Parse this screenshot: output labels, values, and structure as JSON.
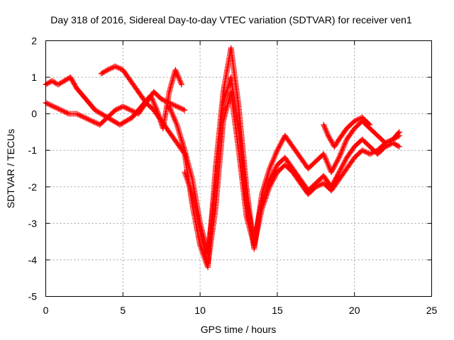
{
  "chart_data": {
    "type": "scatter",
    "title": "Day 318 of 2016, Sidereal Day-to-day VTEC variation (SDTVAR) for receiver ven1",
    "xlabel": "GPS time / hours",
    "ylabel": "SDTVAR / TECUs",
    "xlim": [
      0,
      25
    ],
    "ylim": [
      -5,
      2
    ],
    "xticks": [
      "0",
      "5",
      "10",
      "15",
      "20",
      "25"
    ],
    "yticks": [
      "2",
      "1",
      "0",
      "-1",
      "-2",
      "-3",
      "-4",
      "-5"
    ],
    "grid": true,
    "marker": "plus",
    "color": "#ff0000",
    "series": [
      {
        "x": [
          0.0,
          0.4,
          0.8,
          1.2,
          1.6,
          2.0,
          2.4,
          2.8,
          3.2,
          3.6,
          4.0,
          4.4,
          4.8,
          5.2,
          5.6,
          6.0,
          6.4,
          6.8,
          7.2,
          7.6,
          8.0,
          8.4,
          8.8
        ],
        "y": [
          0.8,
          0.9,
          0.8,
          0.9,
          1.0,
          0.7,
          0.5,
          0.3,
          0.1,
          0.0,
          -0.1,
          -0.2,
          -0.3,
          -0.2,
          -0.1,
          0.1,
          0.3,
          0.5,
          0.1,
          -0.4,
          0.6,
          1.2,
          0.8
        ]
      },
      {
        "x": [
          0.0,
          0.5,
          1.0,
          1.5,
          2.0,
          2.5,
          3.0,
          3.5,
          4.0,
          4.5,
          5.0,
          5.5,
          6.0,
          6.5,
          7.0,
          7.5,
          8.0,
          8.5,
          9.0
        ],
        "y": [
          0.3,
          0.2,
          0.1,
          0.0,
          0.0,
          -0.1,
          -0.2,
          -0.3,
          -0.1,
          0.1,
          0.2,
          0.1,
          0.0,
          0.3,
          0.6,
          0.4,
          0.3,
          0.2,
          0.1
        ]
      },
      {
        "x": [
          3.6,
          4.0,
          4.5,
          5.0,
          5.5,
          6.0,
          6.5,
          7.0,
          7.5,
          8.0,
          8.5,
          9.0,
          9.5,
          10.0,
          10.5,
          11.0,
          11.5,
          12.0,
          12.5,
          13.0,
          13.5,
          14.0,
          14.5,
          15.0,
          15.5,
          16.0,
          16.5,
          17.0,
          17.5,
          18.0,
          18.5,
          19.0,
          19.5,
          20.0,
          20.5,
          21.0,
          21.5,
          22.0,
          22.5,
          22.9
        ],
        "y": [
          1.1,
          1.2,
          1.3,
          1.2,
          0.9,
          0.6,
          0.3,
          0.1,
          -0.2,
          -0.5,
          -0.8,
          -1.1,
          -2.5,
          -3.6,
          -4.2,
          -1.5,
          0.6,
          1.8,
          0.2,
          -2.0,
          -3.7,
          -2.2,
          -1.5,
          -1.0,
          -0.6,
          -0.9,
          -1.2,
          -1.5,
          -1.3,
          -1.1,
          -1.6,
          -1.2,
          -0.7,
          -0.4,
          -0.2,
          -0.4,
          -0.6,
          -0.8,
          -0.7,
          -0.5
        ]
      },
      {
        "x": [
          8.0,
          8.5,
          9.0,
          9.5,
          10.0,
          10.5,
          11.0,
          11.5,
          12.0,
          12.5,
          13.0,
          13.5,
          14.0,
          14.5,
          15.0,
          15.5,
          16.0,
          16.5,
          17.0,
          17.5,
          18.0,
          18.5,
          19.0,
          19.5,
          20.0,
          20.5,
          21.0,
          21.5,
          22.0,
          22.5,
          22.9
        ],
        "y": [
          0.2,
          -0.3,
          -1.0,
          -1.8,
          -3.0,
          -3.8,
          -2.0,
          0.3,
          1.0,
          -0.5,
          -2.4,
          -3.5,
          -2.4,
          -1.8,
          -1.4,
          -1.2,
          -1.5,
          -1.8,
          -2.1,
          -1.9,
          -1.7,
          -2.0,
          -1.6,
          -1.2,
          -0.9,
          -0.7,
          -0.9,
          -1.1,
          -0.9,
          -0.8,
          -0.9
        ]
      },
      {
        "x": [
          9.0,
          9.5,
          10.0,
          10.5,
          11.0,
          11.5,
          12.0,
          12.5,
          13.0,
          13.5,
          14.0,
          14.5,
          15.0,
          15.5,
          16.0,
          16.5,
          17.0,
          17.5,
          18.0,
          18.5,
          19.0,
          19.5,
          20.0,
          20.5,
          21.0,
          21.5,
          22.0,
          22.5,
          22.9
        ],
        "y": [
          -1.6,
          -2.2,
          -3.2,
          -4.1,
          -2.6,
          -0.2,
          0.6,
          -1.0,
          -2.8,
          -3.6,
          -2.6,
          -2.0,
          -1.6,
          -1.4,
          -1.6,
          -1.9,
          -2.2,
          -2.0,
          -1.9,
          -2.1,
          -1.8,
          -1.5,
          -1.2,
          -1.0,
          -1.1,
          -1.0,
          -0.8,
          -0.7,
          -0.6
        ]
      },
      {
        "x": [
          18.0,
          18.3,
          18.7,
          19.0,
          19.5,
          20.0,
          20.5,
          21.0
        ],
        "y": [
          -0.3,
          -0.6,
          -0.9,
          -0.7,
          -0.4,
          -0.2,
          -0.1,
          -0.3
        ]
      }
    ]
  }
}
